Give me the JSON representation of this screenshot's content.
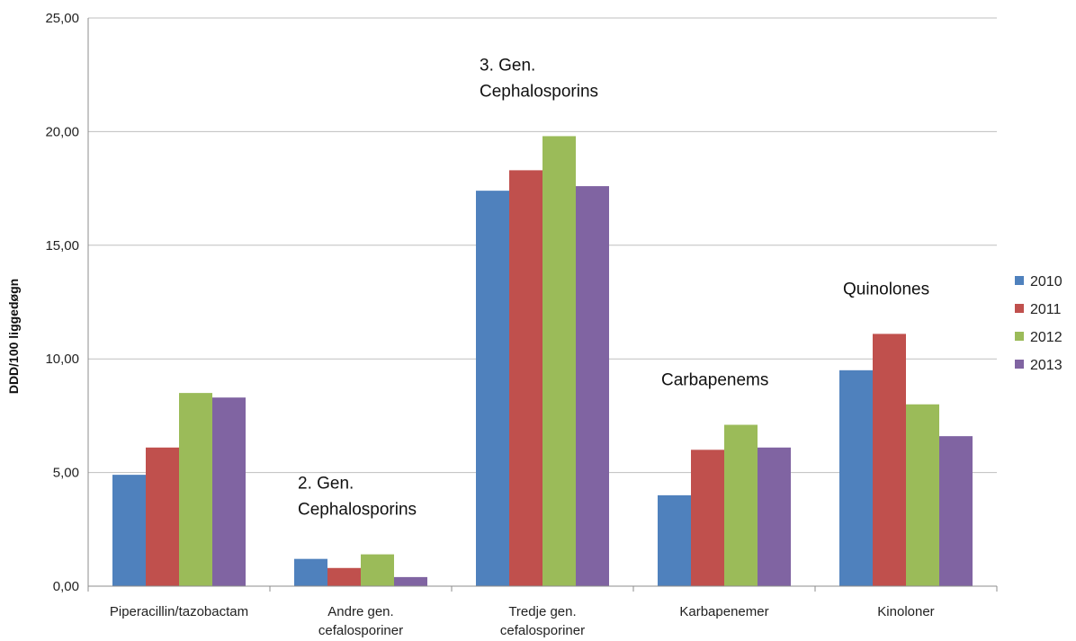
{
  "chart_data": {
    "type": "bar",
    "title": "",
    "xlabel": "",
    "ylabel": "DDD/100 liggedøgn",
    "ylim": [
      0,
      25
    ],
    "yticks": [
      "0,00",
      "5,00",
      "10,00",
      "15,00",
      "20,00",
      "25,00"
    ],
    "grid": true,
    "legend_position": "right",
    "categories": [
      [
        "Piperacillin/tazobactam"
      ],
      [
        "Andre gen.",
        "cefalosporiner"
      ],
      [
        "Tredje gen.",
        "cefalosporiner"
      ],
      [
        "Karbapenemer"
      ],
      [
        "Kinoloner"
      ]
    ],
    "series": [
      {
        "name": "2010",
        "color": "#4f81bd",
        "values": [
          4.9,
          1.2,
          17.4,
          4.0,
          9.5
        ]
      },
      {
        "name": "2011",
        "color": "#c0504d",
        "values": [
          6.1,
          0.8,
          18.3,
          6.0,
          11.1
        ]
      },
      {
        "name": "2012",
        "color": "#9bbb59",
        "values": [
          8.5,
          1.4,
          19.8,
          7.1,
          8.0
        ]
      },
      {
        "name": "2013",
        "color": "#8064a2",
        "values": [
          8.3,
          0.4,
          17.6,
          6.1,
          6.6
        ]
      }
    ],
    "annotations": [
      {
        "category": 1,
        "lines": [
          "2. Gen.",
          "Cephalosporins"
        ]
      },
      {
        "category": 2,
        "lines": [
          "3. Gen.",
          "Cephalosporins"
        ]
      },
      {
        "category": 3,
        "lines": [
          "Carbapenems"
        ]
      },
      {
        "category": 4,
        "lines": [
          "Quinolones"
        ]
      }
    ]
  }
}
